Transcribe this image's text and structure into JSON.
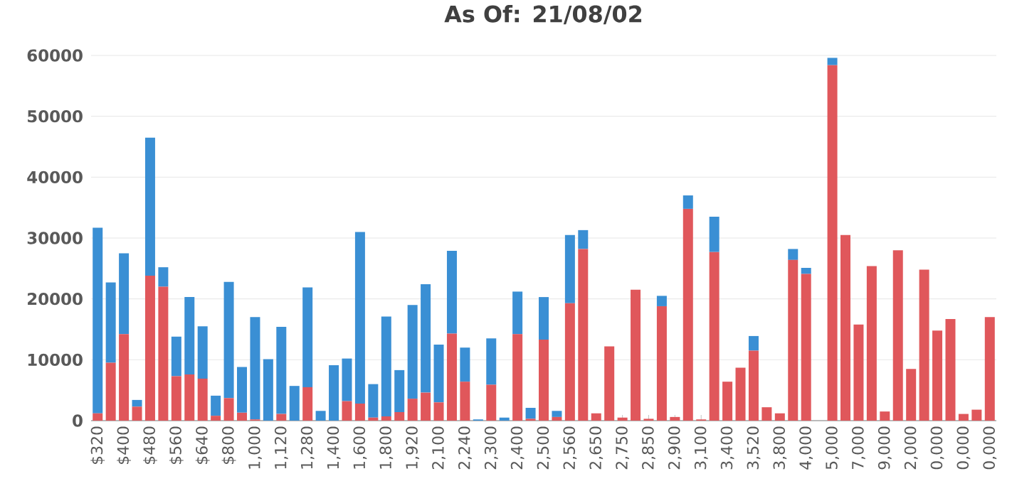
{
  "chart_data": {
    "type": "bar",
    "stacked": true,
    "title": "As Of: 21/08/02",
    "categories": [
      "$320",
      null,
      "$400",
      null,
      "$480",
      null,
      "$560",
      null,
      "$640",
      null,
      "$800",
      null,
      "1,000",
      null,
      "1,120",
      null,
      "1,280",
      null,
      "1,400",
      null,
      "1,600",
      null,
      "1,800",
      null,
      "1,920",
      null,
      "2,100",
      null,
      "2,240",
      null,
      "2,300",
      null,
      "2,400",
      null,
      "2,500",
      null,
      "2,560",
      null,
      "2,650",
      null,
      "2,750",
      null,
      "2,850",
      null,
      "2,900",
      null,
      "3,100",
      null,
      "3,400",
      null,
      "3,520",
      null,
      "3,800",
      null,
      "4,000",
      null,
      "5,000",
      null,
      "7,000",
      null,
      "9,000",
      null,
      "2,000",
      null,
      "0,000",
      null,
      "0,000",
      null,
      "0,000"
    ],
    "series": [
      {
        "color": "#e0575b",
        "values": [
          1200,
          9500,
          14200,
          2300,
          23800,
          22000,
          7300,
          7600,
          6900,
          800,
          3700,
          1300,
          200,
          0,
          1100,
          0,
          5500,
          0,
          0,
          3200,
          2800,
          500,
          700,
          1400,
          3600,
          4600,
          3000,
          14300,
          6400,
          0,
          5900,
          0,
          14200,
          300,
          13300,
          600,
          19300,
          28200,
          1200,
          12200,
          500,
          21500,
          300,
          18800,
          600,
          34800,
          200,
          27700,
          6400,
          8700,
          11500,
          2200,
          1200,
          26400,
          24100,
          0,
          58400,
          30500,
          15800,
          25400,
          1500,
          28000,
          8500,
          24800,
          14800,
          16700,
          1100,
          1800,
          17000
        ]
      },
      {
        "color": "#3a8fd4",
        "values": [
          30500,
          13200,
          13300,
          1100,
          22700,
          3200,
          6500,
          12700,
          8600,
          3300,
          19100,
          7500,
          16800,
          10100,
          14300,
          5700,
          16400,
          1600,
          9100,
          7000,
          28200,
          5500,
          16400,
          6900,
          15400,
          17800,
          9500,
          13600,
          5600,
          200,
          7600,
          500,
          7000,
          1800,
          7000,
          1000,
          11200,
          3100,
          0,
          0,
          0,
          0,
          0,
          1700,
          0,
          2200,
          0,
          5800,
          0,
          0,
          2400,
          0,
          0,
          1800,
          1000,
          0,
          1200,
          0,
          0,
          0,
          0,
          0,
          0,
          0,
          0,
          0,
          0,
          0,
          0
        ]
      }
    ],
    "ylim": [
      0,
      60000
    ],
    "yticks": [
      0,
      10000,
      20000,
      30000,
      40000,
      50000,
      60000
    ],
    "grid": "y",
    "legend": false
  }
}
